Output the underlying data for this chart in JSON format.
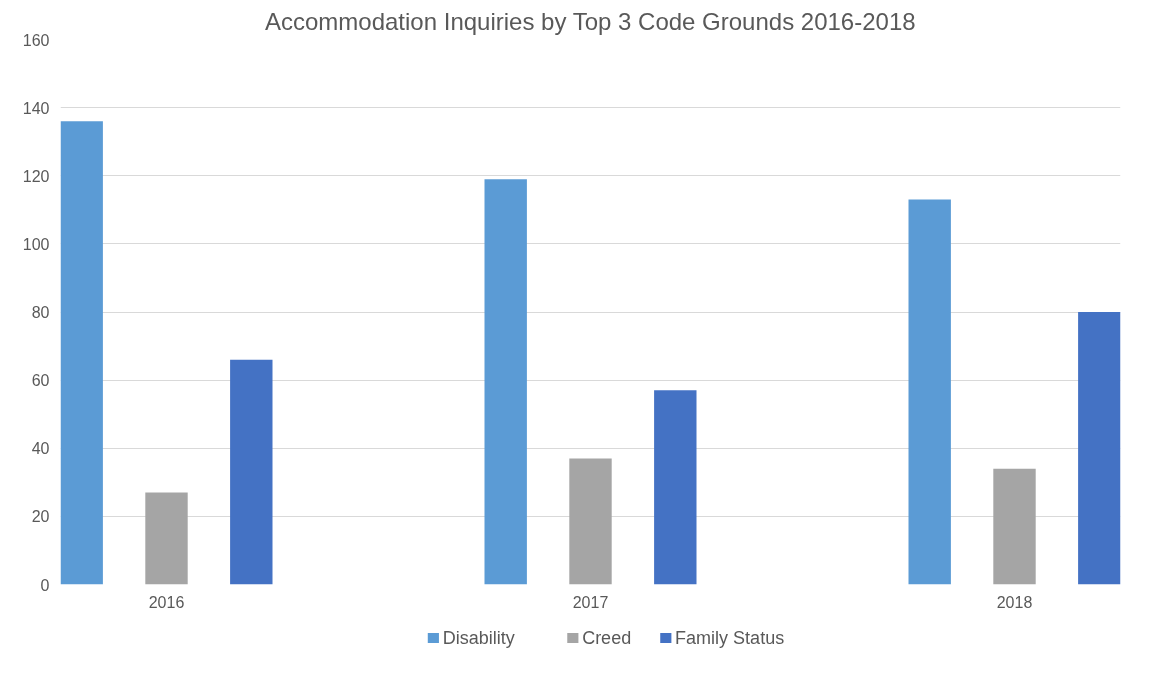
{
  "chart_data": {
    "type": "bar",
    "title": "Accommodation Inquiries by Top 3 Code Grounds 2016-2018",
    "categories": [
      "2016",
      "2017",
      "2018"
    ],
    "series": [
      {
        "name": "Disability",
        "color": "#5b9bd5",
        "values": [
          136,
          119,
          113
        ]
      },
      {
        "name": "Creed",
        "color": "#a5a5a5",
        "values": [
          27,
          37,
          34
        ]
      },
      {
        "name": "Family Status",
        "color": "#4472c4",
        "values": [
          66,
          57,
          80
        ]
      }
    ],
    "ylim": [
      0,
      160
    ],
    "yticks": [
      0,
      20,
      40,
      60,
      80,
      100,
      120,
      140,
      160
    ],
    "grid": "y",
    "legend": "bottom"
  }
}
